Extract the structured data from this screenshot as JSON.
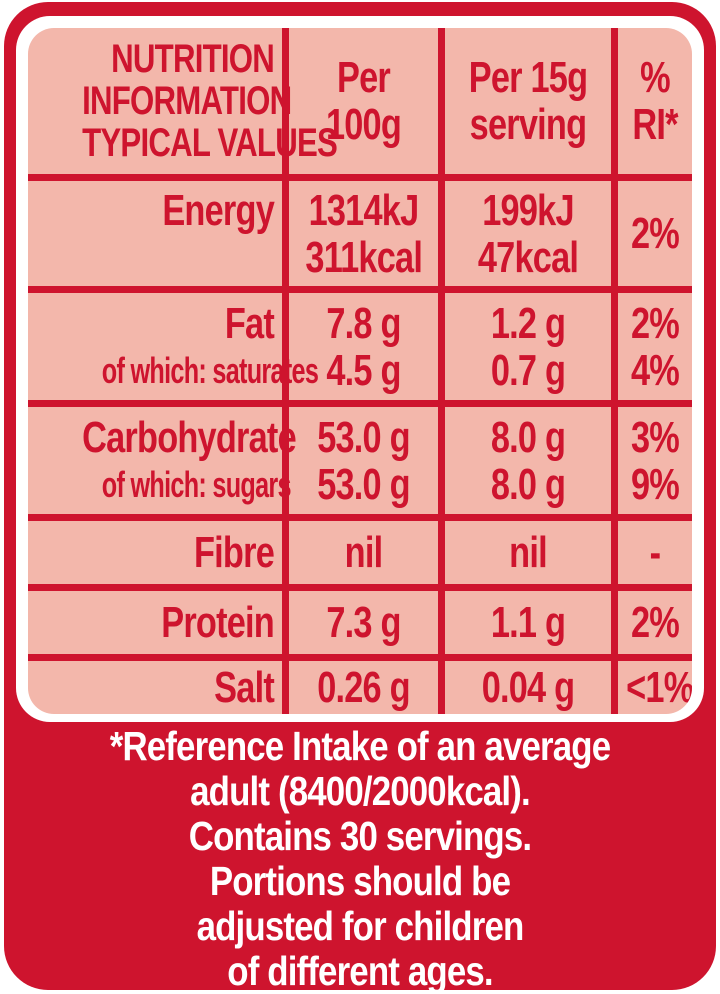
{
  "colors": {
    "red": "#ce142e",
    "pink": "#f3b7ab",
    "footnote_text": "#ffffff"
  },
  "table": {
    "header": {
      "typical_values_lines": [
        "NUTRITION",
        "INFORMATION",
        "TYPICAL VALUES"
      ],
      "per_100g_lines": [
        "Per",
        "100g"
      ],
      "per_serving_lines": [
        "Per 15g",
        "serving"
      ],
      "ri_lines": [
        "%",
        "RI*"
      ]
    },
    "rows": [
      {
        "name": "energy",
        "label": "Energy",
        "per100g": [
          "1314kJ",
          "311kcal"
        ],
        "per_serving": [
          "199kJ",
          "47kcal"
        ],
        "ri": "2%"
      },
      {
        "name": "fat",
        "label": [
          "Fat",
          "of which: saturates"
        ],
        "per100g": [
          "7.8 g",
          "4.5 g"
        ],
        "per_serving": [
          "1.2 g",
          "0.7 g"
        ],
        "ri": [
          "2%",
          "4%"
        ]
      },
      {
        "name": "carbohydrate",
        "label": [
          "Carbohydrate",
          "of which: sugars"
        ],
        "per100g": [
          "53.0 g",
          "53.0 g"
        ],
        "per_serving": [
          "8.0 g",
          "8.0 g"
        ],
        "ri": [
          "3%",
          "9%"
        ]
      },
      {
        "name": "fibre",
        "label": "Fibre",
        "per100g": "nil",
        "per_serving": "nil",
        "ri": "-"
      },
      {
        "name": "protein",
        "label": "Protein",
        "per100g": "7.3 g",
        "per_serving": "1.1 g",
        "ri": "2%"
      },
      {
        "name": "salt",
        "label": "Salt",
        "per100g": "0.26 g",
        "per_serving": "0.04 g",
        "ri": "<1%"
      }
    ]
  },
  "footnote": {
    "lines": [
      "*Reference Intake of an average",
      "adult (8400/2000kcal).",
      "Contains 30 servings.",
      "Portions should be",
      "adjusted for children",
      "of different ages."
    ]
  }
}
